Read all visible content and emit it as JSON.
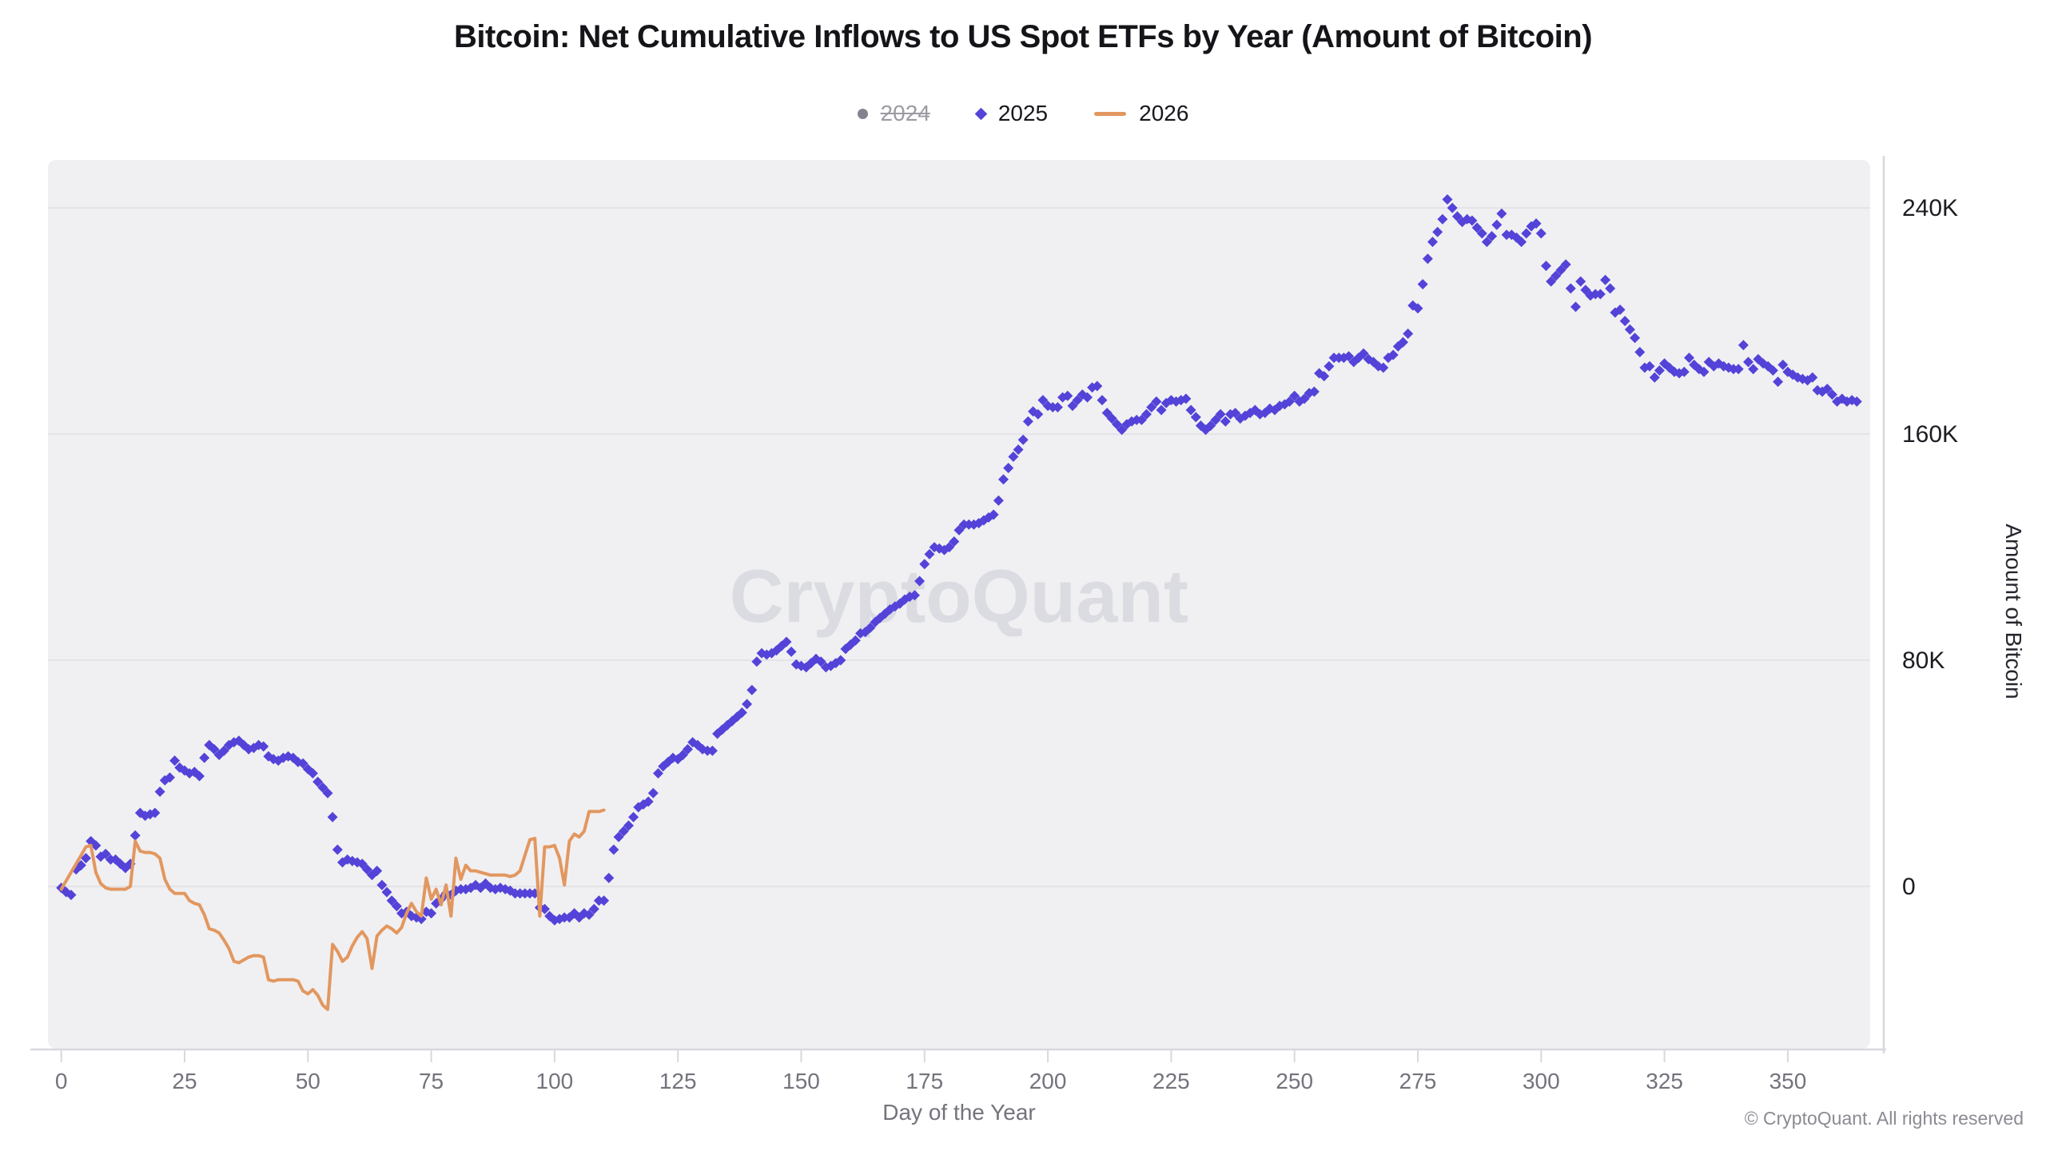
{
  "title": "Bitcoin: Net Cumulative Inflows to US Spot ETFs by Year (Amount of Bitcoin)",
  "watermark": "CryptoQuant",
  "footer": "© CryptoQuant. All rights reserved",
  "legend": {
    "item_2024": {
      "label": "2024",
      "disabled": true,
      "marker": "circle-icon",
      "color": "#83838D"
    },
    "item_2025": {
      "label": "2025",
      "disabled": false,
      "marker": "diamond-icon",
      "color": "#5443D8"
    },
    "item_2026": {
      "label": "2026",
      "disabled": false,
      "marker": "line-icon",
      "color": "#E2975F"
    }
  },
  "colors": {
    "purple_2025": "#5443D8",
    "orange_2026": "#E2975F",
    "gray_2024": "#83838D",
    "plot_bg": "#F0F0F2",
    "grid": "#E3E3E8",
    "axis": "#D8D8DE",
    "tick": "#D8D8DE",
    "x_tick_label": "#73737D",
    "y_tick_label": "#1C1C22",
    "watermark": "#DBDBE2",
    "title": "#141419",
    "footer": "#8A8A93"
  },
  "chart_data": {
    "type": "scatter",
    "title": "Bitcoin: Net Cumulative Inflows to US Spot ETFs by Year (Amount of Bitcoin)",
    "xlabel": "Day of the Year",
    "ylabel": "Amount of Bitcoin",
    "grid": "horizontal-only",
    "legend_position": "top-center",
    "x_ticks": [
      0,
      25,
      50,
      75,
      100,
      125,
      150,
      175,
      200,
      225,
      250,
      275,
      300,
      325,
      350
    ],
    "y_ticks_k": [
      0,
      80,
      160,
      240
    ],
    "y_tick_labels": [
      "0",
      "80K",
      "160K",
      "240K"
    ],
    "xlim": [
      -2.7,
      366.7
    ],
    "ylim_k": [
      -57.4,
      257
    ],
    "unit": "thousand BTC",
    "series": [
      {
        "name": "2024",
        "style": "scatter",
        "marker": "circle",
        "color": "#83838D",
        "visible": false,
        "start_day": 0,
        "values_k": []
      },
      {
        "name": "2025",
        "style": "scatter",
        "marker": "diamond",
        "color": "#5443D8",
        "visible": true,
        "start_day": 0,
        "values_k": [
          -0.5,
          -2,
          -3,
          6,
          7.5,
          10,
          16,
          14.5,
          10.5,
          11.5,
          9.5,
          9.5,
          8,
          6.5,
          8,
          18,
          26,
          25,
          25.5,
          26,
          33.5,
          37.5,
          38.5,
          44.5,
          42,
          41,
          40,
          40.5,
          39,
          45.5,
          50,
          48.5,
          46.5,
          48,
          50,
          51,
          51.5,
          50,
          48.5,
          49,
          50,
          49.5,
          46,
          45,
          44.5,
          45.5,
          46,
          45.5,
          44,
          43.5,
          41.5,
          40,
          37,
          35,
          33,
          24.5,
          13,
          8.5,
          9.5,
          9,
          8.5,
          8,
          6,
          4,
          5.5,
          0.5,
          -2,
          -5,
          -7,
          -9.5,
          -9,
          -10.5,
          -11,
          -11.5,
          -9,
          -9.5,
          -6,
          -4.5,
          -2.5,
          -3,
          -1.5,
          -1,
          -1,
          -0.5,
          0.5,
          -0.5,
          1,
          -0.5,
          -1,
          -0.5,
          -1,
          -1.5,
          -2.5,
          -2.5,
          -2.5,
          -2.5,
          -2.5,
          -7.5,
          -8,
          -10.5,
          -12,
          -11.5,
          -11,
          -11,
          -9.5,
          -11,
          -9.5,
          -10,
          -8,
          -5,
          -5,
          3,
          13,
          17.5,
          19.5,
          21.5,
          24.5,
          28,
          29,
          30,
          33,
          40,
          42.5,
          44,
          45.5,
          45,
          46.5,
          48.5,
          51,
          50,
          48.5,
          48,
          48,
          54,
          55.5,
          57,
          58.5,
          60,
          61.5,
          64.5,
          69.5,
          79.5,
          82.5,
          82,
          82.5,
          83.5,
          85,
          86.5,
          83,
          78.5,
          78,
          77.5,
          79,
          80.5,
          79.5,
          77.5,
          78,
          79,
          80,
          84,
          85.5,
          87,
          89.5,
          90,
          91.5,
          93.5,
          95,
          96.5,
          98,
          99,
          100,
          101.5,
          102.5,
          103,
          108,
          114,
          117.5,
          120,
          119.5,
          119,
          120,
          122,
          126,
          128,
          128,
          128,
          128.5,
          129.5,
          130.5,
          131.5,
          136.5,
          144,
          148,
          152,
          154.5,
          158,
          164.5,
          168,
          167,
          172,
          170,
          169.5,
          169.5,
          173,
          173.5,
          170,
          172,
          174,
          173,
          176.5,
          177,
          172,
          167.5,
          165.5,
          163.5,
          161.5,
          163.5,
          164.5,
          165,
          165,
          167,
          169.5,
          171.5,
          168.5,
          171,
          172,
          171.5,
          172,
          172.5,
          168.5,
          166,
          163,
          161.5,
          163,
          165,
          167,
          164.5,
          167,
          167.5,
          165.5,
          166.5,
          167.5,
          168.5,
          167,
          167.5,
          169,
          168.5,
          170,
          170.5,
          171.5,
          173.5,
          171.5,
          172.5,
          174.5,
          175,
          181.5,
          180.5,
          184,
          187,
          187,
          187,
          187.5,
          185.5,
          187,
          188.5,
          186.5,
          185.5,
          184,
          183.5,
          187,
          188,
          191,
          192.5,
          195.5,
          205.5,
          204.5,
          213,
          222,
          228,
          231.5,
          236,
          243,
          240,
          237,
          235,
          236,
          235.5,
          233,
          231,
          228,
          230,
          234,
          238,
          230.5,
          230.5,
          229.5,
          228,
          231,
          233.5,
          234.5,
          231,
          219.5,
          214,
          216,
          218,
          220,
          211.5,
          205,
          214,
          211,
          209,
          209.5,
          209.5,
          214.5,
          211.5,
          203,
          204,
          200,
          197,
          194,
          189,
          183.5,
          184,
          180,
          182.5,
          185,
          183.5,
          182,
          181.5,
          182,
          187,
          184.5,
          183,
          182,
          185.5,
          184,
          185,
          184,
          183.5,
          183,
          183,
          191.5,
          185.5,
          183,
          186.5,
          185,
          184,
          182.5,
          178.5,
          184.5,
          182,
          181,
          180,
          179.5,
          179,
          180,
          175.5,
          175,
          176,
          174,
          171.5,
          172.5,
          171.5,
          172,
          171.5
        ]
      },
      {
        "name": "2026",
        "style": "line",
        "marker": "none",
        "color": "#E2975F",
        "visible": true,
        "start_day": 0,
        "values_k": [
          -1,
          2,
          5,
          8,
          11,
          14,
          14.5,
          5,
          1,
          -0.5,
          -1,
          -1,
          -1,
          -1,
          0,
          16,
          12.5,
          12,
          12,
          11.5,
          10,
          2.5,
          -1,
          -2.5,
          -2.5,
          -2.5,
          -5,
          -6,
          -6.5,
          -10,
          -15,
          -15.5,
          -16.5,
          -19,
          -22,
          -26.5,
          -27,
          -26,
          -25,
          -24.5,
          -24.5,
          -25,
          -33,
          -33.5,
          -33,
          -33,
          -33,
          -33,
          -33.5,
          -37,
          -38,
          -36.5,
          -38.5,
          -42,
          -43.5,
          -20.5,
          -23,
          -26.5,
          -25,
          -21,
          -18,
          -16,
          -18.5,
          -29,
          -17.5,
          -15.5,
          -14,
          -15,
          -16.5,
          -14.5,
          -9.5,
          -6,
          -9,
          -10.5,
          3,
          -4.5,
          -1,
          -6.5,
          0.5,
          -10.5,
          10,
          2.5,
          7.5,
          5.5,
          5.5,
          5,
          4.5,
          4,
          4,
          4,
          4,
          3.5,
          4,
          5.5,
          11,
          16.5,
          17,
          -10.5,
          14,
          14,
          14.5,
          10,
          0.5,
          16,
          18.5,
          17.5,
          19.5,
          26.5,
          26.5,
          26.5,
          27
        ]
      }
    ]
  }
}
